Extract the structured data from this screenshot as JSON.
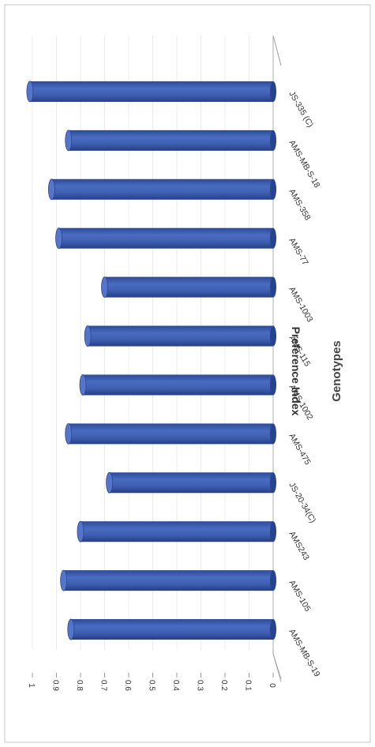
{
  "chart_data": {
    "type": "bar",
    "orientation": "rotated-90-clockwise",
    "xlabel": "Genotypes",
    "ylabel": "Preference Index",
    "ylim": [
      0,
      1
    ],
    "yticks": [
      "0",
      "0.1",
      "0.2",
      "0.3",
      "0.4",
      "0.5",
      "0.6",
      "0.7",
      "0.8",
      "0.9",
      "1"
    ],
    "categories": [
      "AMS-MB-S-19",
      "AMS-105",
      "AMS243",
      "JS-20-34(C)",
      "AMS-475",
      "AMS-1002",
      "AMS-115",
      "AMS-1003",
      "AMS-77",
      "AMS-358",
      "AMS-MB-S-18",
      "JS-335 (C)"
    ],
    "values": [
      0.84,
      0.87,
      0.8,
      0.68,
      0.85,
      0.79,
      0.77,
      0.7,
      0.89,
      0.92,
      0.85,
      1.01
    ],
    "bar_color": "#3b5bab",
    "grid": true
  }
}
